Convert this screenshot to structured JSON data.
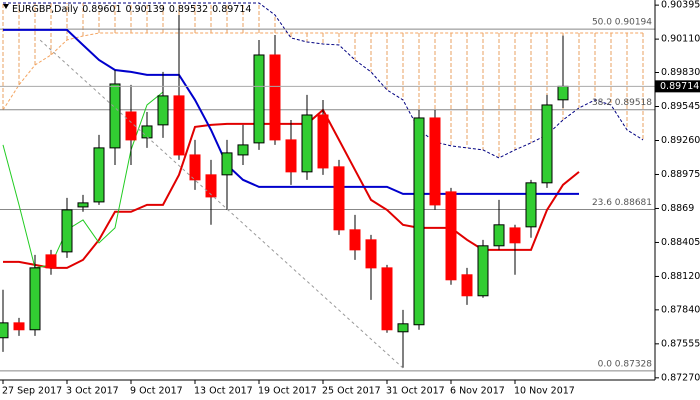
{
  "chart_data": {
    "type": "candlestick",
    "title": "EURGBP,Daily",
    "categories": [
      "27 Sep 2017",
      null,
      null,
      null,
      "3 Oct 2017",
      null,
      null,
      null,
      "9 Oct 2017",
      null,
      null,
      null,
      "13 Oct 2017",
      null,
      null,
      null,
      "19 Oct 2017",
      null,
      null,
      null,
      "25 Oct 2017",
      null,
      null,
      null,
      "31 Oct 2017",
      null,
      null,
      null,
      "6 Nov 2017",
      null,
      null,
      null,
      "10 Nov 2017",
      null,
      null,
      null,
      null,
      null,
      null,
      null,
      null
    ],
    "open": [
      0.87606,
      0.87731,
      0.87673,
      0.88301,
      0.88326,
      0.88703,
      0.88745,
      0.89198,
      0.89499,
      0.89282,
      0.89391,
      0.89634,
      0.89139,
      0.88972,
      0.88972,
      0.89139,
      0.8924,
      0.89977,
      0.89265,
      0.88997,
      0.89474,
      0.89039,
      0.88511,
      0.88427,
      0.88192,
      0.87656,
      0.87715,
      0.89449,
      0.88829,
      0.88134,
      0.87958,
      0.88377,
      0.88527,
      0.88536,
      0.88905,
      0.89601,
      null,
      null,
      null,
      null,
      null
    ],
    "high": [
      0.88008,
      0.87773,
      0.88301,
      0.88343,
      0.88779,
      0.88804,
      0.89307,
      0.89851,
      0.89726,
      0.89499,
      0.89835,
      0.90312,
      0.89265,
      0.89097,
      0.89265,
      0.89391,
      0.90103,
      0.90145,
      0.89432,
      0.89642,
      0.896,
      0.89097,
      0.88636,
      0.88469,
      0.88217,
      0.8784,
      0.89516,
      0.89516,
      0.88863,
      0.88192,
      0.88427,
      0.88762,
      0.88553,
      0.8893,
      0.89642,
      0.90139,
      null,
      null,
      null,
      null,
      null
    ],
    "low": [
      0.87488,
      0.87622,
      0.87622,
      0.88134,
      0.88276,
      0.88662,
      0.8872,
      0.89055,
      0.89055,
      0.89198,
      0.89282,
      0.89097,
      0.88846,
      0.88553,
      0.88678,
      0.89055,
      0.89181,
      0.89223,
      0.88888,
      0.8893,
      0.88972,
      0.88469,
      0.88259,
      0.87924,
      0.87648,
      0.87354,
      0.87673,
      0.88678,
      0.8805,
      0.87882,
      0.87941,
      0.88343,
      0.88134,
      0.88444,
      0.88863,
      0.89532,
      null,
      null,
      null,
      null,
      null
    ],
    "close": [
      0.87731,
      0.87673,
      0.88192,
      0.88192,
      0.88678,
      0.88737,
      0.89198,
      0.89734,
      0.89265,
      0.89382,
      0.89634,
      0.89139,
      0.8893,
      0.88787,
      0.89156,
      0.89223,
      0.89977,
      0.89265,
      0.88997,
      0.89474,
      0.8903,
      0.88511,
      0.88343,
      0.88192,
      0.87673,
      0.87723,
      0.89449,
      0.8872,
      0.88092,
      0.87958,
      0.88377,
      0.88553,
      0.88402,
      0.88905,
      0.89558,
      0.89714,
      null,
      null,
      null,
      null,
      null
    ],
    "up_color": "#32cd32",
    "down_color": "#ff0000",
    "indicators": {
      "tenkan": {
        "color": "#e00000",
        "width": 2,
        "values": [
          0.88242,
          0.88242,
          0.88217,
          0.88192,
          0.88192,
          0.88259,
          0.88427,
          0.88662,
          0.88662,
          0.8872,
          0.8872,
          0.88972,
          0.89374,
          0.89391,
          0.89399,
          0.89399,
          0.89399,
          0.89399,
          0.89399,
          0.89399,
          0.89516,
          0.89265,
          0.89013,
          0.88762,
          0.88678,
          0.88553,
          0.88527,
          0.88527,
          0.88527,
          0.88427,
          0.88343,
          0.88343,
          0.88343,
          0.88343,
          0.88678,
          0.88888,
          0.88997,
          null,
          null,
          null,
          null
        ]
      },
      "kijun": {
        "color": "#0000cc",
        "width": 2,
        "values": [
          0.90187,
          0.90187,
          0.90187,
          0.90187,
          0.90187,
          0.90061,
          0.89935,
          0.89851,
          0.89835,
          0.8981,
          0.8981,
          0.8981,
          0.896,
          0.89349,
          0.89055,
          0.8893,
          0.88871,
          0.88871,
          0.88871,
          0.88871,
          0.88871,
          0.88871,
          0.88871,
          0.88871,
          0.88871,
          0.88812,
          0.88812,
          0.88812,
          0.88812,
          0.88812,
          0.88812,
          0.88812,
          0.88812,
          0.88812,
          0.88812,
          0.88812,
          0.88812,
          null,
          null,
          null,
          null
        ]
      },
      "chikou": {
        "color": "#22cc22",
        "width": 1,
        "values": [
          0.89223,
          0.8872,
          0.88192,
          0.88217,
          0.88511,
          0.88594,
          0.88402,
          0.88527,
          0.89181,
          0.89558,
          0.89667,
          null,
          null,
          null,
          null,
          null,
          null,
          null,
          null,
          null,
          null,
          null,
          null,
          null,
          null,
          null,
          null,
          null,
          null,
          null,
          null,
          null,
          null,
          null,
          null,
          null,
          null,
          null,
          null,
          null,
          null
        ]
      }
    },
    "cloud": {
      "color": "#e8a060",
      "span_a": {
        "color": "#f4a460",
        "values": [
          0.89516,
          0.89726,
          0.89893,
          0.89977,
          0.90103,
          0.90136,
          0.90161,
          0.90161,
          0.90161,
          0.90161,
          0.90161,
          0.90161,
          0.90161,
          0.90161,
          0.90161,
          0.90161,
          0.90161,
          0.90161,
          0.90161,
          0.90161,
          0.90161,
          0.90161,
          0.90161,
          0.90161,
          0.90161,
          0.90161,
          0.90161,
          0.90161,
          0.90161,
          0.90161,
          0.90161,
          0.90161,
          0.90161,
          0.90161,
          0.90161,
          0.90161,
          0.90161,
          0.90161,
          0.90161,
          0.90161,
          0.90161
        ]
      },
      "span_b": {
        "color": "#000080",
        "values": [
          0.90413,
          0.90413,
          0.90413,
          0.90413,
          0.90413,
          0.90413,
          0.90413,
          0.90413,
          0.90413,
          0.90413,
          0.90413,
          0.90413,
          0.90413,
          0.90413,
          0.90413,
          0.90413,
          0.90413,
          0.90312,
          0.9012,
          0.90086,
          0.90069,
          0.90061,
          0.89935,
          0.89835,
          0.89684,
          0.896,
          0.89349,
          0.89248,
          0.89215,
          0.89198,
          0.89181,
          0.89114,
          0.89181,
          0.8924,
          0.89307,
          0.89432,
          0.89533,
          0.896,
          0.89558,
          0.89349,
          0.89265
        ]
      }
    },
    "fib_levels": [
      {
        "label": "50.0",
        "value": 0.90194
      },
      {
        "label": "38.2",
        "value": 0.89518
      },
      {
        "label": "23.6",
        "value": 0.88681
      },
      {
        "label": "0.0",
        "value": 0.87328
      }
    ],
    "ylim": [
      0.87235,
      0.90438
    ],
    "yticks": [
      0.90395,
      {
        "value": 0.9011,
        "label": "0.90110"
      },
      {
        "value": 0.8983,
        "label": "0.89830"
      },
      0.89545,
      {
        "value": 0.8926,
        "label": "0.89260"
      },
      0.88975,
      0.8869,
      0.88405,
      {
        "value": 0.8812,
        "label": "0.88120"
      },
      {
        "value": 0.8784,
        "label": "0.87840"
      },
      0.87555,
      {
        "value": 0.8727,
        "label": "0.87270"
      }
    ]
  }
}
